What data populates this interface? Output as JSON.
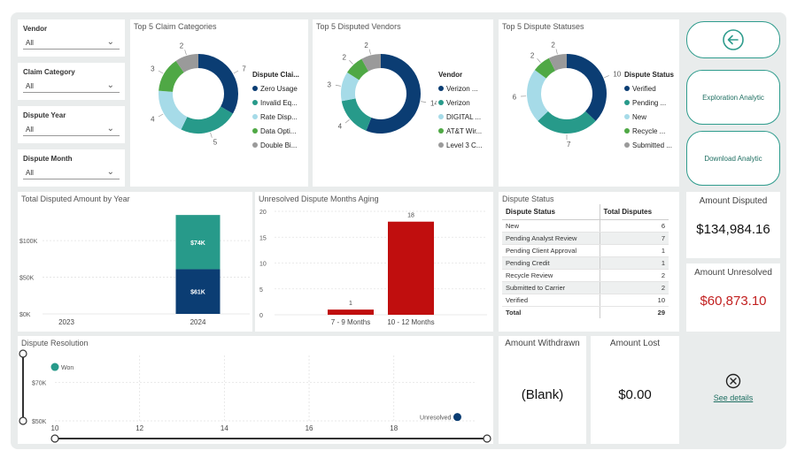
{
  "slicers": [
    {
      "label": "Vendor",
      "value": "All"
    },
    {
      "label": "Claim Category",
      "value": "All"
    },
    {
      "label": "Dispute Year",
      "value": "All"
    },
    {
      "label": "Dispute Month",
      "value": "All"
    }
  ],
  "colors": {
    "navy": "#0b3d73",
    "teal": "#279a8a",
    "lightblue": "#a6dbe8",
    "green": "#4fa845",
    "gray": "#9a9a9a",
    "red": "#c00e0e",
    "amount_unresolved": "#c22020"
  },
  "donut_claim": {
    "title": "Top 5 Claim Categories",
    "legend_title": "Dispute Clai...",
    "items": [
      {
        "label": "Zero Usage",
        "value": 7,
        "color": "#0b3d73"
      },
      {
        "label": "Invalid Eq...",
        "value": 5,
        "color": "#279a8a"
      },
      {
        "label": "Rate Disp...",
        "value": 4,
        "color": "#a6dbe8"
      },
      {
        "label": "Data Opti...",
        "value": 3,
        "color": "#4fa845"
      },
      {
        "label": "Double Bi...",
        "value": 2,
        "color": "#9a9a9a"
      }
    ]
  },
  "donut_vendor": {
    "title": "Top 5 Disputed Vendors",
    "legend_title": "Vendor",
    "items": [
      {
        "label": "Verizon ...",
        "value": 14,
        "color": "#0b3d73"
      },
      {
        "label": "Verizon",
        "value": 4,
        "color": "#279a8a"
      },
      {
        "label": "DIGITAL ...",
        "value": 3,
        "color": "#a6dbe8"
      },
      {
        "label": "AT&T Wir...",
        "value": 2,
        "color": "#4fa845"
      },
      {
        "label": "Level 3 C...",
        "value": 2,
        "color": "#9a9a9a"
      }
    ]
  },
  "donut_status": {
    "title": "Top 5 Dispute Statuses",
    "legend_title": "Dispute Status",
    "items": [
      {
        "label": "Verified",
        "value": 10,
        "color": "#0b3d73"
      },
      {
        "label": "Pending ...",
        "value": 7,
        "color": "#279a8a"
      },
      {
        "label": "New",
        "value": 6,
        "color": "#a6dbe8"
      },
      {
        "label": "Recycle ...",
        "value": 2,
        "color": "#4fa845"
      },
      {
        "label": "Submitted ...",
        "value": 2,
        "color": "#9a9a9a"
      }
    ]
  },
  "buttons": {
    "back_icon": "arrow-left-circle-icon",
    "exploration": "Exploration Analytic",
    "download": "Download Analytic"
  },
  "chart_data": [
    {
      "type": "bar",
      "title": "Total Disputed Amount by Year",
      "categories": [
        "2023",
        "2024"
      ],
      "series": [
        {
          "name": "",
          "values": [
            0,
            61000
          ],
          "color": "#0b3d73"
        },
        {
          "name": "",
          "values": [
            0,
            74000
          ],
          "color": "#279a8a"
        }
      ],
      "data_labels": [
        [
          "",
          "$61K"
        ],
        [
          "",
          "$74K"
        ]
      ],
      "yticks": [
        "$0K",
        "$50K",
        "$100K"
      ],
      "ylim": [
        0,
        140000
      ]
    },
    {
      "type": "bar",
      "title": "Unresolved Dispute Months Aging",
      "categories": [
        "7 - 9 Months",
        "10 - 12 Months"
      ],
      "values": [
        1,
        18
      ],
      "yticks": [
        "0",
        "5",
        "10",
        "15",
        "20"
      ],
      "ylim": [
        0,
        20
      ]
    },
    {
      "type": "scatter",
      "title": "Dispute Resolution",
      "xticks": [
        "10",
        "12",
        "14",
        "16",
        "18"
      ],
      "yticks": [
        "$50K",
        "$70K"
      ],
      "points": [
        {
          "label": "Won",
          "x": 10,
          "y": 78000
        },
        {
          "label": "Unresolved",
          "x": 19.5,
          "y": 52000
        }
      ]
    }
  ],
  "status_table": {
    "title": "Dispute Status",
    "headers": [
      "Dispute Status",
      "Total Disputes"
    ],
    "rows": [
      [
        "New",
        "6"
      ],
      [
        "Pending Analyst Review",
        "7"
      ],
      [
        "Pending Client Approval",
        "1"
      ],
      [
        "Pending Credit",
        "1"
      ],
      [
        "Recycle Review",
        "2"
      ],
      [
        "Submitted to Carrier",
        "2"
      ],
      [
        "Verified",
        "10"
      ]
    ],
    "total": [
      "Total",
      "29"
    ]
  },
  "kpis": {
    "amount_disputed_title": "Amount Disputed",
    "amount_disputed": "$134,984.16",
    "amount_unresolved_title": "Amount Unresolved",
    "amount_unresolved": "$60,873.10",
    "amount_withdrawn_title": "Amount Withdrawn",
    "amount_withdrawn": "(Blank)",
    "amount_lost_title": "Amount Lost",
    "amount_lost": "$0.00"
  },
  "error_card": {
    "icon": "close-circle-icon",
    "link": "See details"
  }
}
